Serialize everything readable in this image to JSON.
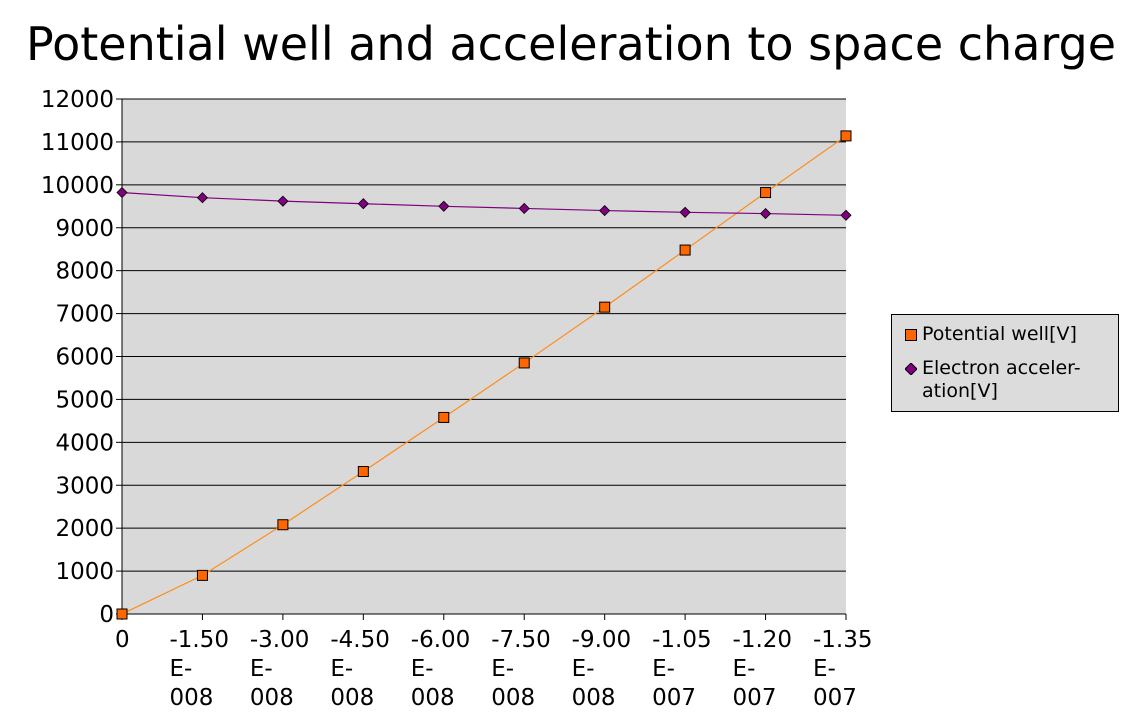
{
  "chart_data": {
    "type": "line",
    "title": "Potential well and acceleration to space charge",
    "x": [
      0,
      -1.5e-08,
      -3e-08,
      -4.5e-08,
      -6e-08,
      -7.5e-08,
      -9e-08,
      -1.05e-07,
      -1.2e-07,
      -1.35e-07
    ],
    "x_tick_labels": [
      [
        "0"
      ],
      [
        "-1.50",
        "E-",
        "008"
      ],
      [
        "-3.00",
        "E-",
        "008"
      ],
      [
        "-4.50",
        "E-",
        "008"
      ],
      [
        "-6.00",
        "E-",
        "008"
      ],
      [
        "-7.50",
        "E-",
        "008"
      ],
      [
        "-9.00",
        "E-",
        "008"
      ],
      [
        "-1.05",
        "E-",
        "007"
      ],
      [
        "-1.20",
        "E-",
        "007"
      ],
      [
        "-1.35",
        "E-",
        "007"
      ]
    ],
    "y_ticks": [
      "0",
      "1000",
      "2000",
      "3000",
      "4000",
      "5000",
      "6000",
      "7000",
      "8000",
      "9000",
      "10000",
      "11000",
      "12000"
    ],
    "ylim": [
      0,
      12000
    ],
    "grid": true,
    "legend_position": "right",
    "series": [
      {
        "name": "Potential well[V]",
        "marker": "square",
        "color": "#ff6600",
        "line_color": "#ff8c1a",
        "values": [
          0,
          900,
          2080,
          3320,
          4580,
          5850,
          7150,
          8480,
          9820,
          11140
        ]
      },
      {
        "name": "Electron acceler-ation[V]",
        "legend_lines": [
          "Electron acceler-",
          "ation[V]"
        ],
        "marker": "diamond",
        "color": "#800080",
        "line_color": "#800080",
        "values": [
          9820,
          9700,
          9620,
          9560,
          9500,
          9450,
          9400,
          9360,
          9330,
          9290
        ]
      }
    ],
    "colors": {
      "plot_background": "#d9d9d9",
      "grid": "#000000"
    }
  }
}
